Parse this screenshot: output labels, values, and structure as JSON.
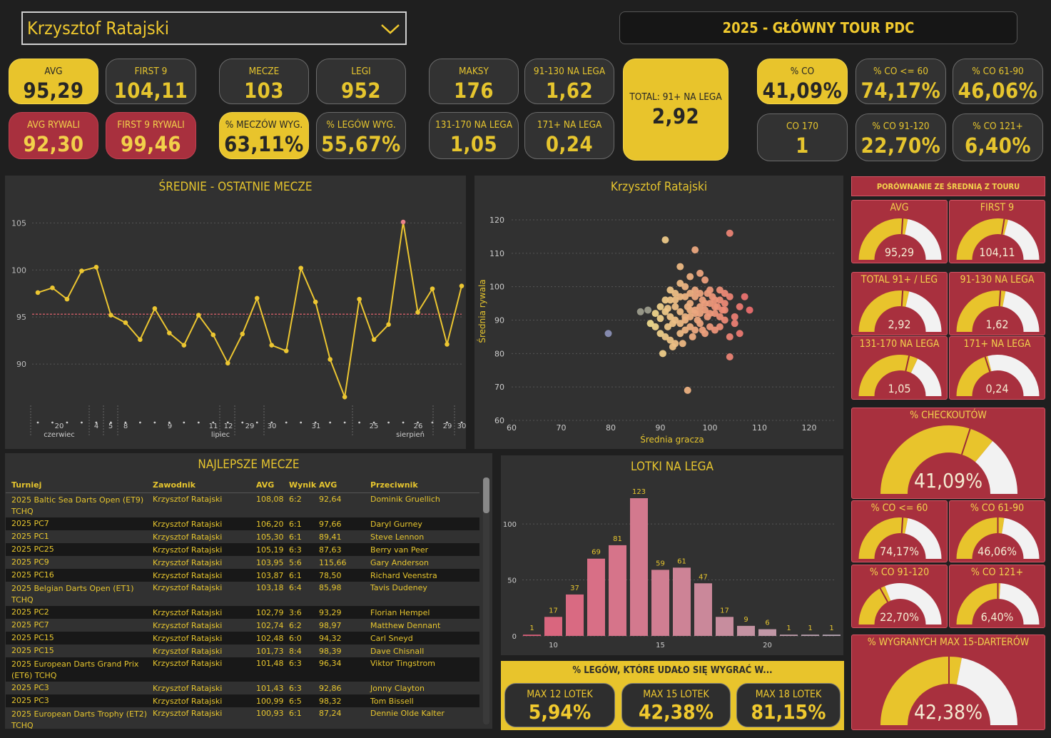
{
  "header": {
    "player": "Krzysztof Ratajski",
    "title": "2025 - GŁÓWNY TOUR PDC"
  },
  "kpi": [
    {
      "id": "avg",
      "label": "AVG",
      "value": "95,29",
      "style": "y"
    },
    {
      "id": "first9",
      "label": "FIRST 9",
      "value": "104,11",
      "style": "d"
    },
    {
      "id": "mecze",
      "label": "MECZE",
      "value": "103",
      "style": "d"
    },
    {
      "id": "legi",
      "label": "LEGI",
      "value": "952",
      "style": "d"
    },
    {
      "id": "maksy",
      "label": "MAKSY",
      "value": "176",
      "style": "d"
    },
    {
      "id": "n91130",
      "label": "91-130 NA LEGA",
      "value": "1,62",
      "style": "d"
    },
    {
      "id": "total91",
      "label": "TOTAL: 91+ NA LEGA",
      "value": "2,92",
      "style": "y"
    },
    {
      "id": "pco",
      "label": "% CO",
      "value": "41,09%",
      "style": "y"
    },
    {
      "id": "pco60",
      "label": "% CO <= 60",
      "value": "74,17%",
      "style": "d"
    },
    {
      "id": "pco6190",
      "label": "% CO 61-90",
      "value": "46,06%",
      "style": "d"
    },
    {
      "id": "avgr",
      "label": "AVG RYWALI",
      "value": "92,30",
      "style": "r"
    },
    {
      "id": "first9r",
      "label": "FIRST 9 RYWALI",
      "value": "99,46",
      "style": "r"
    },
    {
      "id": "pmw",
      "label": "% MECZÓW WYG.",
      "value": "63,11%",
      "style": "y"
    },
    {
      "id": "plw",
      "label": "% LEGÓW WYG.",
      "value": "55,67%",
      "style": "d"
    },
    {
      "id": "n131",
      "label": "131-170 NA LEGA",
      "value": "1,05",
      "style": "d"
    },
    {
      "id": "n171",
      "label": "171+ NA LEGA",
      "value": "0,24",
      "style": "d"
    },
    {
      "id": "co170",
      "label": "CO 170",
      "value": "1",
      "style": "d"
    },
    {
      "id": "pco91",
      "label": "% CO 91-120",
      "value": "22,70%",
      "style": "d"
    },
    {
      "id": "pco121",
      "label": "% CO 121+",
      "value": "6,40%",
      "style": "d"
    }
  ],
  "line_chart": {
    "title": "ŚREDNIE - OSTATNIE MECZE"
  },
  "scatter": {
    "title": "Krzysztof Ratajski"
  },
  "table": {
    "title": "NAJLEPSZE MECZE",
    "headers": [
      "Turniej",
      "Zawodnik",
      "AVG",
      "Wynik",
      "AVG",
      "Przeciwnik"
    ],
    "rows": [
      [
        "2025 Baltic Sea Darts Open (ET9) TCHQ",
        "Krzysztof Ratajski",
        "108,08",
        "6:2",
        "92,64",
        "Dominik Gruellich"
      ],
      [
        "2025 PC7",
        "Krzysztof Ratajski",
        "106,20",
        "6:1",
        "97,66",
        "Daryl Gurney"
      ],
      [
        "2025 PC1",
        "Krzysztof Ratajski",
        "105,30",
        "6:1",
        "89,41",
        "Steve Lennon"
      ],
      [
        "2025 PC25",
        "Krzysztof Ratajski",
        "105,19",
        "6:3",
        "87,63",
        "Berry van Peer"
      ],
      [
        "2025 PC9",
        "Krzysztof Ratajski",
        "103,95",
        "5:6",
        "115,66",
        "Gary Anderson"
      ],
      [
        "2025 PC16",
        "Krzysztof Ratajski",
        "103,87",
        "6:1",
        "78,50",
        "Richard Veenstra"
      ],
      [
        "2025 Belgian Darts Open (ET1) TCHQ",
        "Krzysztof Ratajski",
        "103,18",
        "6:4",
        "85,98",
        "Tavis Dudeney"
      ],
      [
        "2025 PC2",
        "Krzysztof Ratajski",
        "102,79",
        "3:6",
        "93,29",
        "Florian Hempel"
      ],
      [
        "2025 PC7",
        "Krzysztof Ratajski",
        "102,74",
        "6:2",
        "98,97",
        "Matthew Dennant"
      ],
      [
        "2025 PC15",
        "Krzysztof Ratajski",
        "102,48",
        "6:0",
        "94,32",
        "Carl Sneyd"
      ],
      [
        "2025 PC15",
        "Krzysztof Ratajski",
        "101,73",
        "8:4",
        "98,39",
        "Dave Chisnall"
      ],
      [
        "2025 European Darts Grand Prix (ET6) TCHQ",
        "Krzysztof Ratajski",
        "101,48",
        "6:3",
        "96,34",
        "Viktor Tingstrom"
      ],
      [
        "2025 PC3",
        "Krzysztof Ratajski",
        "101,43",
        "6:3",
        "92,86",
        "Jonny Clayton"
      ],
      [
        "2025 PC3",
        "Krzysztof Ratajski",
        "100,99",
        "6:5",
        "98,32",
        "Tom Bissell"
      ],
      [
        "2025 European Darts Trophy (ET2) TCHQ",
        "Krzysztof Ratajski",
        "100,93",
        "6:1",
        "87,24",
        "Dennie Olde Kalter"
      ]
    ]
  },
  "hist": {
    "title": "LOTKI NA LEGA"
  },
  "bottom": {
    "title": "% LEGÓW, KTÓRE UDAŁO SIĘ WYGRAĆ W...",
    "cards": [
      {
        "label": "MAX 12 LOTEK",
        "value": "5,94%"
      },
      {
        "label": "MAX 15 LOTEK",
        "value": "42,38%"
      },
      {
        "label": "MAX 18 LOTEK",
        "value": "81,15%"
      }
    ]
  },
  "compare": {
    "header": "PORÓWNANIE ZE ŚREDNIĄ Z TOURU",
    "gauges": [
      {
        "label": "AVG",
        "value": "95,29",
        "frac": 0.56,
        "target": 0.52
      },
      {
        "label": "FIRST 9",
        "value": "104,11",
        "frac": 0.58,
        "target": 0.55
      },
      {
        "label": "TOTAL 91+ / LEG",
        "value": "2,92",
        "frac": 0.57,
        "target": 0.52
      },
      {
        "label": "91-130 NA LEGA",
        "value": "1,62",
        "frac": 0.56,
        "target": 0.52
      },
      {
        "label": "131-170 NA LEGA",
        "value": "1,05",
        "frac": 0.64,
        "target": 0.57
      },
      {
        "label": "171+ NA LEGA",
        "value": "0,24",
        "frac": 0.42,
        "target": 0.4
      },
      {
        "label": "% CHECKOUTÓW",
        "value": "41,09%",
        "frac": 0.72,
        "target": 0.6
      },
      {
        "label": "% CO <= 60",
        "value": "74,17%",
        "frac": 0.56,
        "target": 0.52
      },
      {
        "label": "% CO 61-90",
        "value": "46,06%",
        "frac": 0.55,
        "target": 0.5
      },
      {
        "label": "% CO 91-120",
        "value": "22,70%",
        "frac": 0.38,
        "target": 0.34
      },
      {
        "label": "% CO 121+",
        "value": "6,40%",
        "frac": 0.52,
        "target": 0.5
      },
      {
        "label": "% WYGRANYCH MAX 15-DARTERÓW",
        "value": "42,38%",
        "frac": 0.56,
        "target": 0.5
      }
    ]
  },
  "chart_data": [
    {
      "type": "line",
      "title": "ŚREDNIE - OSTATNIE MECZE",
      "ylim": [
        85,
        107
      ],
      "reference": 95.3,
      "yticks": [
        90,
        95,
        100,
        105
      ],
      "values": [
        97.6,
        98.1,
        96.9,
        99.9,
        100.3,
        95.2,
        94.4,
        92.6,
        95.9,
        93.3,
        92.0,
        95.2,
        93.1,
        90.1,
        93.2,
        97.0,
        92.0,
        91.4,
        100.2,
        96.6,
        90.5,
        86.5,
        96.9,
        92.6,
        94.2,
        105.1,
        95.5,
        98.0,
        92.1,
        98.3
      ],
      "day_labels": [
        "20",
        "4",
        "5",
        "8",
        "9",
        "11",
        "12",
        "29",
        "30",
        "31",
        "25",
        "26",
        "29",
        "30"
      ],
      "month_labels": [
        "czerwiec",
        "lipiec",
        "sierpień"
      ]
    },
    {
      "type": "scatter",
      "title": "Krzysztof Ratajski",
      "xlabel": "Średnia gracza",
      "ylabel": "Średnia rywala",
      "xlim": [
        60,
        125
      ],
      "ylim": [
        60,
        125
      ],
      "xticks": [
        60,
        70,
        80,
        90,
        100,
        110,
        120
      ],
      "yticks": [
        60,
        70,
        80,
        90,
        100,
        110,
        120
      ],
      "points": [
        [
          79.5,
          86
        ],
        [
          86,
          92.5
        ],
        [
          87.5,
          93
        ],
        [
          88,
          89
        ],
        [
          89,
          88
        ],
        [
          90,
          90.5
        ],
        [
          91,
          92.5
        ],
        [
          91.5,
          93.5
        ],
        [
          92,
          91
        ],
        [
          92.5,
          89
        ],
        [
          93,
          94
        ],
        [
          94,
          92.5
        ],
        [
          95,
          91
        ],
        [
          95.5,
          94
        ],
        [
          96,
          95
        ],
        [
          96,
          93
        ],
        [
          97,
          92
        ],
        [
          97.5,
          90
        ],
        [
          98,
          94
        ],
        [
          98.5,
          96
        ],
        [
          99,
          93
        ],
        [
          99.5,
          91
        ],
        [
          100,
          95
        ],
        [
          100.5,
          97
        ],
        [
          101,
          92
        ],
        [
          101.5,
          94
        ],
        [
          102,
          96
        ],
        [
          103,
          93
        ],
        [
          104,
          97
        ],
        [
          105,
          91
        ],
        [
          106,
          94
        ],
        [
          107,
          97
        ],
        [
          108,
          93
        ],
        [
          103,
          90
        ],
        [
          102,
          88
        ],
        [
          104,
          85
        ],
        [
          106,
          86
        ],
        [
          104,
          79
        ],
        [
          95.5,
          69
        ],
        [
          91,
          114
        ],
        [
          94,
          106
        ],
        [
          97,
          111
        ],
        [
          104,
          116
        ],
        [
          96,
          103
        ],
        [
          97,
          99
        ],
        [
          98,
          104
        ],
        [
          99,
          102
        ],
        [
          95,
          100
        ],
        [
          94,
          101
        ],
        [
          93,
          98
        ],
        [
          92,
          99
        ],
        [
          91,
          96
        ],
        [
          90,
          94
        ],
        [
          89,
          92
        ],
        [
          90,
          86
        ],
        [
          91,
          85
        ],
        [
          92,
          84
        ],
        [
          93,
          83
        ],
        [
          94,
          86
        ],
        [
          95,
          87
        ],
        [
          96,
          88
        ],
        [
          97,
          87
        ],
        [
          98,
          89
        ],
        [
          99,
          86
        ],
        [
          100,
          88
        ],
        [
          101,
          87
        ],
        [
          93,
          90
        ],
        [
          94,
          89
        ],
        [
          95,
          90
        ],
        [
          96,
          91
        ],
        [
          97,
          93
        ],
        [
          98,
          92
        ],
        [
          99,
          95
        ],
        [
          100,
          92
        ],
        [
          101,
          94
        ],
        [
          102,
          99
        ],
        [
          103,
          98
        ],
        [
          92,
          96
        ],
        [
          93,
          96
        ],
        [
          94,
          97
        ],
        [
          95,
          97
        ],
        [
          96,
          98
        ],
        [
          97,
          97
        ],
        [
          98,
          98
        ],
        [
          100,
          99
        ],
        [
          101,
          96
        ],
        [
          102,
          91
        ],
        [
          103,
          95
        ],
        [
          90.5,
          80
        ],
        [
          92.5,
          82
        ],
        [
          94.5,
          83
        ],
        [
          91.5,
          88
        ],
        [
          96.5,
          85
        ],
        [
          98.5,
          87
        ],
        [
          105,
          89
        ],
        [
          102.5,
          93
        ],
        [
          99.5,
          98
        ]
      ]
    },
    {
      "type": "bar",
      "title": "LOTKI NA LEGA",
      "categories": [
        9,
        10,
        11,
        12,
        13,
        14,
        15,
        16,
        17,
        18,
        19,
        20,
        21,
        22,
        23,
        24
      ],
      "values": [
        1,
        17,
        37,
        69,
        81,
        123,
        59,
        61,
        47,
        17,
        9,
        6,
        1,
        1,
        1,
        0
      ],
      "xticks": [
        10,
        15,
        20
      ],
      "yticks": [
        0,
        50,
        100
      ]
    }
  ]
}
